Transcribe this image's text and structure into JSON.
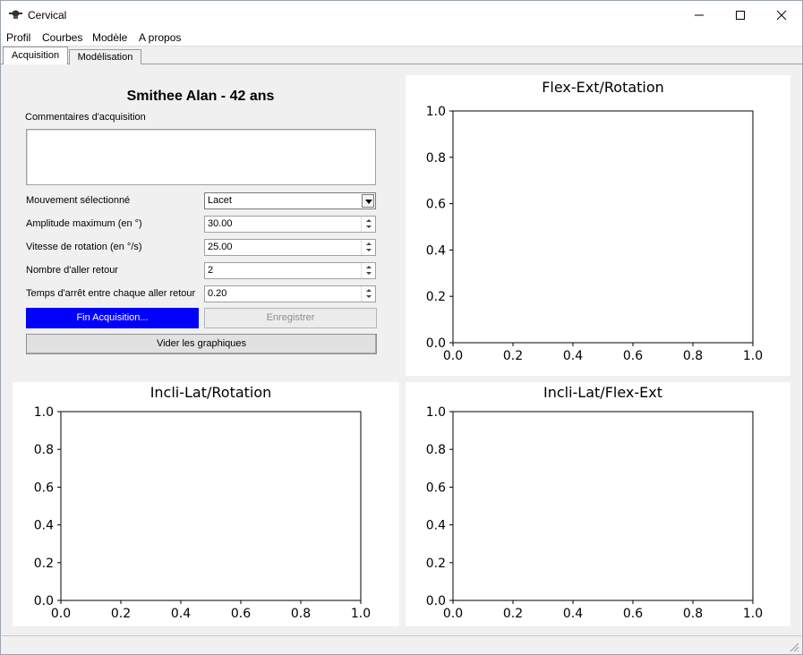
{
  "window": {
    "title": "Cervical"
  },
  "menu": [
    "Profil",
    "Courbes",
    "Modèle",
    "A propos"
  ],
  "tabs": [
    "Acquisition",
    "Modélisation"
  ],
  "patient": {
    "header": "Smithee Alan - 42 ans"
  },
  "comments": {
    "label": "Commentaires d'acquisition",
    "value": ""
  },
  "params": {
    "movement": {
      "label": "Mouvement sélectionné",
      "value": "Lacet"
    },
    "amplitude": {
      "label": "Amplitude maximum (en °)",
      "value": "30.00"
    },
    "speed": {
      "label": "Vitesse de rotation (en °/s)",
      "value": "25.00"
    },
    "repetitions": {
      "label": "Nombre d'aller retour",
      "value": "2"
    },
    "pause": {
      "label": "Temps d'arrêt entre chaque aller retour",
      "value": "0.20"
    }
  },
  "buttons": {
    "end_acquisition": "Fin Acquisition...",
    "save": "Enregistrer",
    "clear_graphs": "Vider les graphiques"
  },
  "colors": {
    "primary_button": "#0000ff"
  },
  "chart_data": [
    {
      "type": "line",
      "title": "Flex-Ext/Rotation",
      "xlabel": "",
      "ylabel": "",
      "xlim": [
        0.0,
        1.0
      ],
      "ylim": [
        0.0,
        1.0
      ],
      "xticks": [
        "0.0",
        "0.2",
        "0.4",
        "0.6",
        "0.8",
        "1.0"
      ],
      "yticks": [
        "0.0",
        "0.2",
        "0.4",
        "0.6",
        "0.8",
        "1.0"
      ],
      "series": []
    },
    {
      "type": "line",
      "title": "Incli-Lat/Rotation",
      "xlabel": "",
      "ylabel": "",
      "xlim": [
        0.0,
        1.0
      ],
      "ylim": [
        0.0,
        1.0
      ],
      "xticks": [
        "0.0",
        "0.2",
        "0.4",
        "0.6",
        "0.8",
        "1.0"
      ],
      "yticks": [
        "0.0",
        "0.2",
        "0.4",
        "0.6",
        "0.8",
        "1.0"
      ],
      "series": []
    },
    {
      "type": "line",
      "title": "Incli-Lat/Flex-Ext",
      "xlabel": "",
      "ylabel": "",
      "xlim": [
        0.0,
        1.0
      ],
      "ylim": [
        0.0,
        1.0
      ],
      "xticks": [
        "0.0",
        "0.2",
        "0.4",
        "0.6",
        "0.8",
        "1.0"
      ],
      "yticks": [
        "0.0",
        "0.2",
        "0.4",
        "0.6",
        "0.8",
        "1.0"
      ],
      "series": []
    }
  ]
}
